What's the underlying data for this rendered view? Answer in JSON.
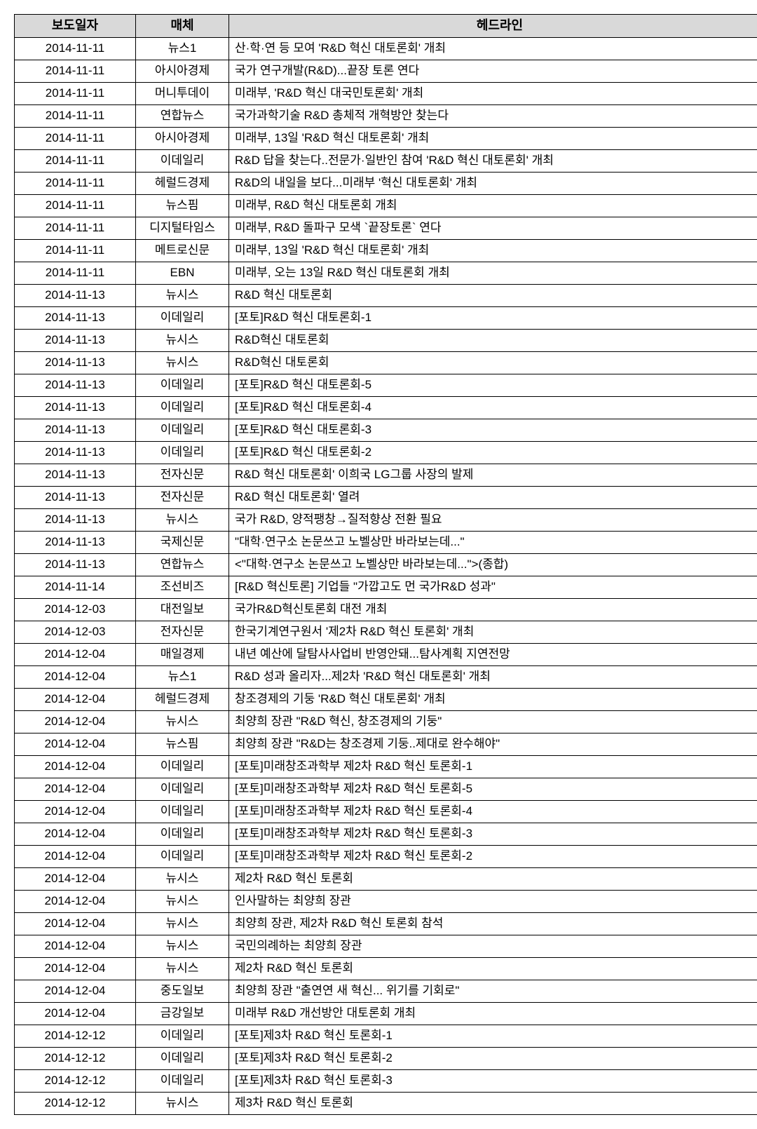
{
  "table": {
    "columns": [
      {
        "label": "보도일자",
        "class": "col-date"
      },
      {
        "label": "매체",
        "class": "col-media"
      },
      {
        "label": "헤드라인",
        "class": "col-headline"
      }
    ],
    "header_bg": "#d9d9d9",
    "border_color": "#000000",
    "rows": [
      [
        "2014-11-11",
        "뉴스1",
        "산·학·연 등 모여 'R&D 혁신 대토론회' 개최"
      ],
      [
        "2014-11-11",
        "아시아경제",
        "국가 연구개발(R&D)...끝장 토론 연다"
      ],
      [
        "2014-11-11",
        "머니투데이",
        "미래부, 'R&D 혁신 대국민토론회' 개최"
      ],
      [
        "2014-11-11",
        "연합뉴스",
        "국가과학기술 R&D 총체적 개혁방안 찾는다"
      ],
      [
        "2014-11-11",
        "아시아경제",
        "미래부, 13일 'R&D 혁신 대토론회' 개최"
      ],
      [
        "2014-11-11",
        "이데일리",
        "R&D 답을 찾는다..전문가·일반인 참여 'R&D 혁신 대토론회' 개최"
      ],
      [
        "2014-11-11",
        "헤럴드경제",
        "R&D의 내일을 보다...미래부 '혁신 대토론회' 개최"
      ],
      [
        "2014-11-11",
        "뉴스핌",
        "미래부, R&D 혁신 대토론회 개최"
      ],
      [
        "2014-11-11",
        "디지털타임스",
        "미래부, R&D 돌파구 모색 `끝장토론` 연다"
      ],
      [
        "2014-11-11",
        "메트로신문",
        "미래부, 13일 'R&D 혁신 대토론회' 개최"
      ],
      [
        "2014-11-11",
        "EBN",
        "미래부, 오는 13일 R&D 혁신 대토론회 개최"
      ],
      [
        "2014-11-13",
        "뉴시스",
        "R&D 혁신 대토론회"
      ],
      [
        "2014-11-13",
        "이데일리",
        "[포토]R&D 혁신 대토론회-1"
      ],
      [
        "2014-11-13",
        "뉴시스",
        "R&D혁신 대토론회"
      ],
      [
        "2014-11-13",
        "뉴시스",
        "R&D혁신 대토론회"
      ],
      [
        "2014-11-13",
        "이데일리",
        "[포토]R&D 혁신 대토론회-5"
      ],
      [
        "2014-11-13",
        "이데일리",
        "[포토]R&D 혁신 대토론회-4"
      ],
      [
        "2014-11-13",
        "이데일리",
        "[포토]R&D 혁신 대토론회-3"
      ],
      [
        "2014-11-13",
        "이데일리",
        "[포토]R&D 혁신 대토론회-2"
      ],
      [
        "2014-11-13",
        "전자신문",
        "R&D 혁신 대토론회' 이희국 LG그룹 사장의 발제"
      ],
      [
        "2014-11-13",
        "전자신문",
        "R&D 혁신 대토론회' 열려"
      ],
      [
        "2014-11-13",
        "뉴시스",
        "국가 R&D, 양적팽창→질적향상 전환 필요"
      ],
      [
        "2014-11-13",
        "국제신문",
        "\"대학·연구소 논문쓰고 노벨상만 바라보는데...\""
      ],
      [
        "2014-11-13",
        "연합뉴스",
        "<\"대학·연구소 논문쓰고 노벨상만 바라보는데...\">(종합)"
      ],
      [
        "2014-11-14",
        "조선비즈",
        "[R&D 혁신토론] 기업들 \"가깝고도 먼 국가R&D 성과\""
      ],
      [
        "2014-12-03",
        "대전일보",
        "국가R&D혁신토론회 대전 개최"
      ],
      [
        "2014-12-03",
        "전자신문",
        "한국기계연구원서 '제2차 R&D 혁신 토론회' 개최"
      ],
      [
        "2014-12-04",
        "매일경제",
        "내년 예산에 달탐사사업비 반영안돼...탐사계획 지연전망"
      ],
      [
        "2014-12-04",
        "뉴스1",
        "R&D 성과 올리자...제2차 'R&D 혁신 대토론회' 개최"
      ],
      [
        "2014-12-04",
        "헤럴드경제",
        "창조경제의 기둥 'R&D 혁신 대토론회' 개최"
      ],
      [
        "2014-12-04",
        "뉴시스",
        "최양희 장관 \"R&D 혁신, 창조경제의 기둥\""
      ],
      [
        "2014-12-04",
        "뉴스핌",
        "최양희 장관 \"R&D는 창조경제 기둥..제대로 완수해야\""
      ],
      [
        "2014-12-04",
        "이데일리",
        "[포토]미래창조과학부 제2차 R&D 혁신 토론회-1"
      ],
      [
        "2014-12-04",
        "이데일리",
        "[포토]미래창조과학부 제2차 R&D 혁신 토론회-5"
      ],
      [
        "2014-12-04",
        "이데일리",
        "[포토]미래창조과학부 제2차 R&D 혁신 토론회-4"
      ],
      [
        "2014-12-04",
        "이데일리",
        "[포토]미래창조과학부 제2차 R&D 혁신 토론회-3"
      ],
      [
        "2014-12-04",
        "이데일리",
        "[포토]미래창조과학부 제2차 R&D 혁신 토론회-2"
      ],
      [
        "2014-12-04",
        "뉴시스",
        "제2차 R&D 혁신 토론회"
      ],
      [
        "2014-12-04",
        "뉴시스",
        "인사말하는 최양희 장관"
      ],
      [
        "2014-12-04",
        "뉴시스",
        "최양희 장관, 제2차 R&D 혁신 토론회 참석"
      ],
      [
        "2014-12-04",
        "뉴시스",
        "국민의례하는 최양희 장관"
      ],
      [
        "2014-12-04",
        "뉴시스",
        "제2차 R&D 혁신 토론회"
      ],
      [
        "2014-12-04",
        "중도일보",
        "최양희 장관 \"출연연 새 혁신... 위기를 기회로\""
      ],
      [
        "2014-12-04",
        "금강일보",
        "미래부 R&D 개선방안 대토론회 개최"
      ],
      [
        "2014-12-12",
        "이데일리",
        "[포토]제3차 R&D 혁신 토론회-1"
      ],
      [
        "2014-12-12",
        "이데일리",
        "[포토]제3차 R&D 혁신 토론회-2"
      ],
      [
        "2014-12-12",
        "이데일리",
        "[포토]제3차 R&D 혁신 토론회-3"
      ],
      [
        "2014-12-12",
        "뉴시스",
        "제3차 R&D 혁신 토론회"
      ]
    ]
  }
}
